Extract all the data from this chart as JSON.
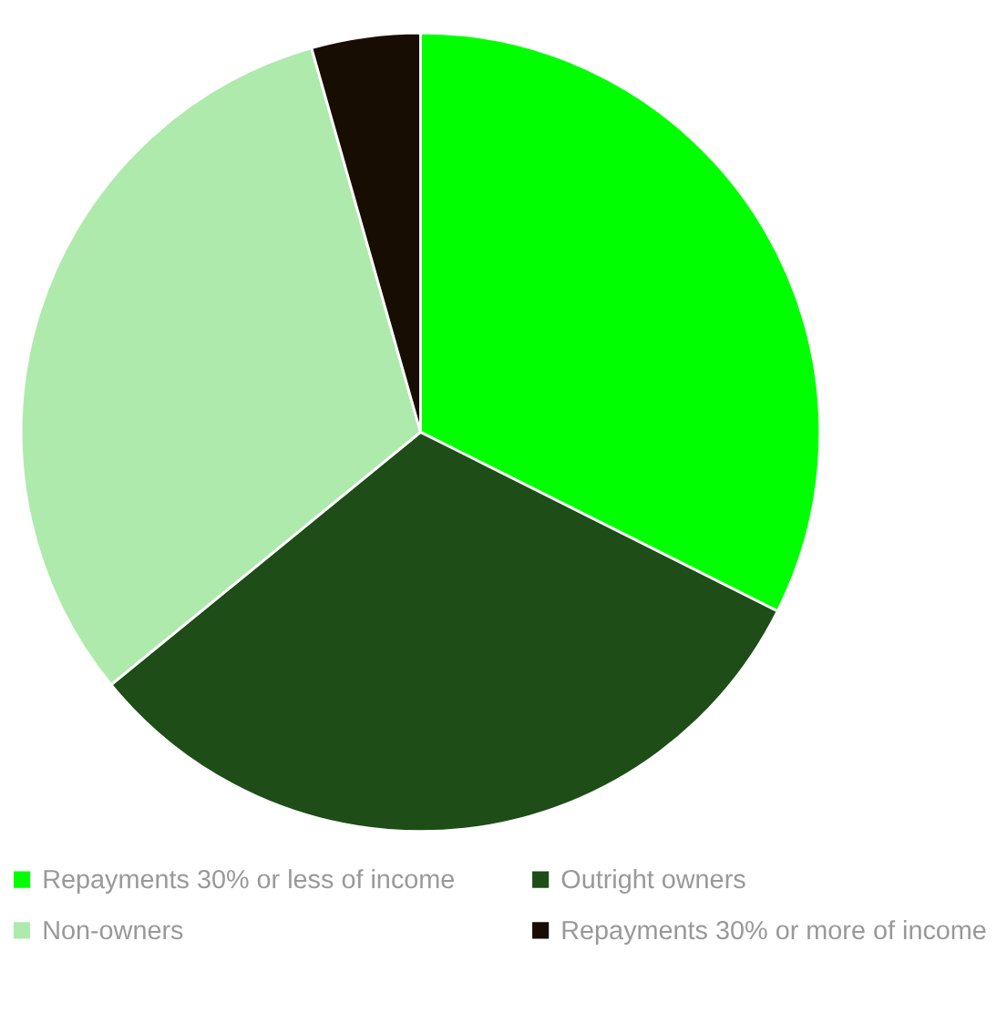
{
  "chart_data": {
    "type": "pie",
    "categories": [
      "Repayments 30% or less of income",
      "Outright owners",
      "Non-owners",
      "Repayments 30% or more of income"
    ],
    "values": [
      32.4,
      31.7,
      31.5,
      4.4
    ],
    "colors": [
      "#00ff00",
      "#1e4d18",
      "#aeeaac",
      "#170d02"
    ],
    "legend": "bottom"
  }
}
